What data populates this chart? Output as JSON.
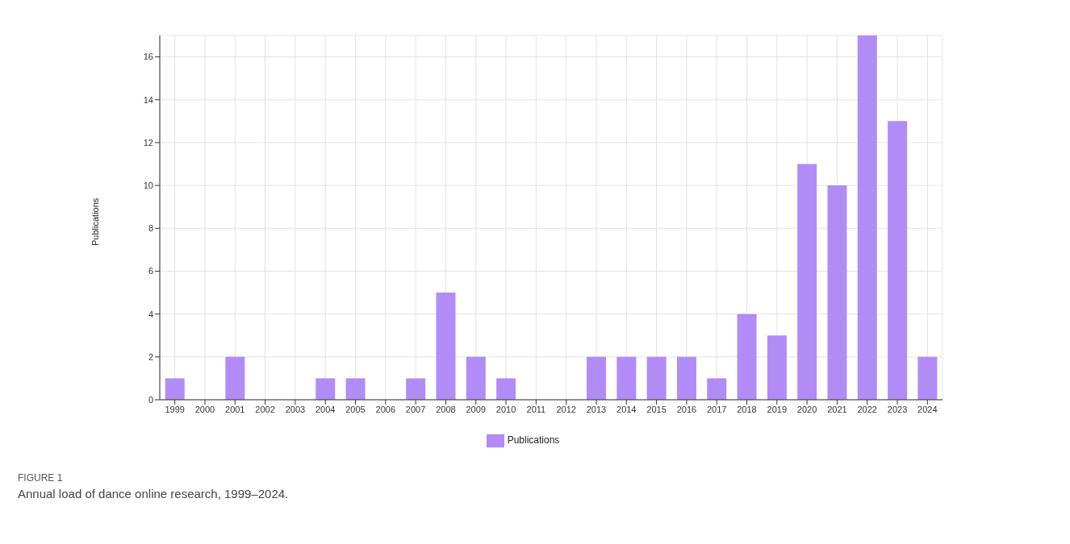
{
  "chart_data": {
    "type": "bar",
    "ylabel": "Publications",
    "categories": [
      "1999",
      "2000",
      "2001",
      "2002",
      "2003",
      "2004",
      "2005",
      "2006",
      "2007",
      "2008",
      "2009",
      "2010",
      "2011",
      "2012",
      "2013",
      "2014",
      "2015",
      "2016",
      "2017",
      "2018",
      "2019",
      "2020",
      "2021",
      "2022",
      "2023",
      "2024"
    ],
    "series": [
      {
        "name": "Publications",
        "color": "#b18cf7",
        "values": [
          1,
          0,
          2,
          0,
          0,
          1,
          1,
          0,
          1,
          5,
          2,
          1,
          0,
          0,
          2,
          2,
          2,
          2,
          1,
          4,
          3,
          11,
          10,
          17,
          13,
          2
        ]
      }
    ],
    "ylim": [
      0,
      17
    ],
    "yticks": [
      0,
      2,
      4,
      6,
      8,
      10,
      12,
      14,
      16
    ],
    "grid": true,
    "legend": "bottom",
    "annotations": [
      "FIGURE 1",
      "Annual load of dance online research, 1999–2024."
    ]
  }
}
